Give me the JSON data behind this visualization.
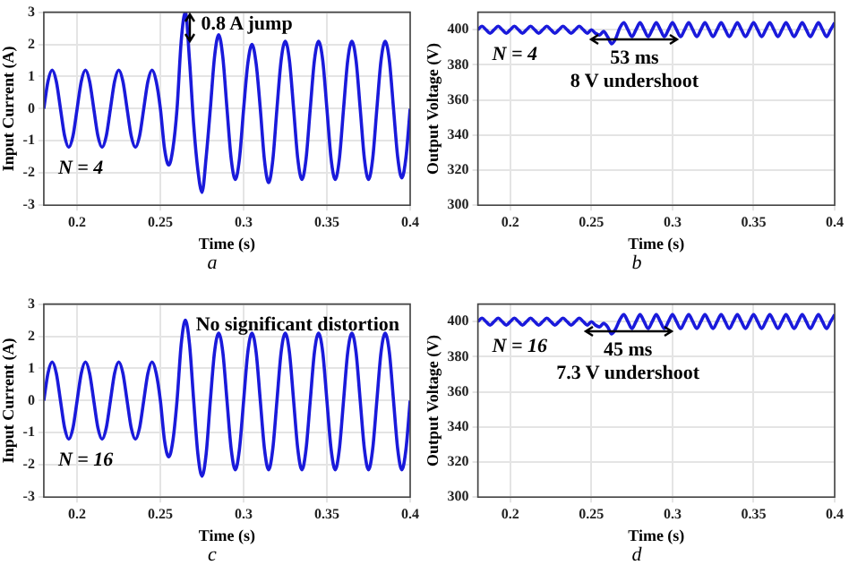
{
  "chart_data": [
    {
      "type": "line",
      "xlabel": "Time (s)",
      "ylabel": "Input Current (A)",
      "annotations": [
        "N = 4",
        {
          "text": "0.8 A jump",
          "x": 0.268,
          "y": 3
        },
        "a"
      ],
      "x": [
        0.18,
        0.1825,
        0.185,
        0.1875,
        0.19,
        0.1925,
        0.195,
        0.1975,
        0.2,
        0.2025,
        0.205,
        0.2075,
        0.21,
        0.2125,
        0.215,
        0.2175,
        0.22,
        0.2225,
        0.225,
        0.2275,
        0.23,
        0.2325,
        0.235,
        0.2375,
        0.24,
        0.2425,
        0.245,
        0.2475,
        0.25,
        0.2525,
        0.255,
        0.2575,
        0.26,
        0.2625,
        0.265,
        0.2675,
        0.27,
        0.2725,
        0.275,
        0.2775,
        0.28,
        0.2825,
        0.285,
        0.2875,
        0.29,
        0.2925,
        0.295,
        0.2975,
        0.3,
        0.3025,
        0.305,
        0.3075,
        0.31,
        0.3125,
        0.315,
        0.3175,
        0.32,
        0.3225,
        0.325,
        0.3275,
        0.33,
        0.3325,
        0.335,
        0.3375,
        0.34,
        0.3425,
        0.345,
        0.3475,
        0.35,
        0.3525,
        0.355,
        0.3575,
        0.36,
        0.3625,
        0.365,
        0.3675,
        0.37,
        0.3725,
        0.375,
        0.3775,
        0.38,
        0.3825,
        0.385,
        0.3875,
        0.39,
        0.3925,
        0.395,
        0.3975,
        0.4
      ],
      "values": [
        0,
        0.85,
        1.2,
        0.85,
        0,
        -0.85,
        -1.2,
        -0.85,
        0,
        0.85,
        1.2,
        0.85,
        0,
        -0.85,
        -1.2,
        -0.85,
        0,
        0.85,
        1.2,
        0.85,
        0,
        -0.85,
        -1.2,
        -0.85,
        0,
        0.85,
        1.2,
        0.85,
        0,
        -1.25,
        -1.75,
        -1.25,
        0,
        2.1,
        3,
        1.5,
        -0.5,
        -1.9,
        -2.6,
        -1.5,
        0,
        1.6,
        2.3,
        1.6,
        0,
        -1.55,
        -2.2,
        -1.55,
        0,
        1.4,
        2,
        1.4,
        0,
        -1.6,
        -2.3,
        -1.6,
        0,
        1.5,
        2.1,
        1.5,
        0,
        -1.55,
        -2.2,
        -1.55,
        0,
        1.5,
        2.1,
        1.5,
        0,
        -1.55,
        -2.2,
        -1.55,
        0,
        1.5,
        2.1,
        1.5,
        0,
        -1.55,
        -2.2,
        -1.55,
        0,
        1.5,
        2.1,
        1.5,
        0,
        -1.5,
        -2.15,
        -1.5,
        0
      ],
      "color": "#1a1adb",
      "xlim": [
        0.18,
        0.4
      ],
      "xticks": [
        0.2,
        0.25,
        0.3,
        0.35,
        0.4
      ],
      "ylim": [
        -3,
        3
      ],
      "yticks": [
        -3,
        -2,
        -1,
        0,
        1,
        2,
        3
      ],
      "grid": true,
      "legend": false,
      "marker": "none"
    },
    {
      "type": "line",
      "xlabel": "Time (s)",
      "ylabel": "Output Voltage (V)",
      "annotations": [
        "N = 4",
        {
          "text": "53 ms",
          "x": 0.2765,
          "y": 395
        },
        "8 V undershoot",
        "b"
      ],
      "x": [
        0.18,
        0.1825,
        0.185,
        0.1875,
        0.19,
        0.1925,
        0.195,
        0.1975,
        0.2,
        0.2025,
        0.205,
        0.2075,
        0.21,
        0.2125,
        0.215,
        0.2175,
        0.22,
        0.2225,
        0.225,
        0.2275,
        0.23,
        0.2325,
        0.235,
        0.2375,
        0.24,
        0.2425,
        0.245,
        0.2475,
        0.25,
        0.2525,
        0.255,
        0.2575,
        0.26,
        0.2625,
        0.265,
        0.2675,
        0.27,
        0.2725,
        0.275,
        0.2775,
        0.28,
        0.2825,
        0.285,
        0.2875,
        0.29,
        0.2925,
        0.295,
        0.2975,
        0.3,
        0.3025,
        0.305,
        0.3075,
        0.31,
        0.3125,
        0.315,
        0.3175,
        0.32,
        0.3225,
        0.325,
        0.3275,
        0.33,
        0.3325,
        0.335,
        0.3375,
        0.34,
        0.3425,
        0.345,
        0.3475,
        0.35,
        0.3525,
        0.355,
        0.3575,
        0.36,
        0.3625,
        0.365,
        0.3675,
        0.37,
        0.3725,
        0.375,
        0.3775,
        0.38,
        0.3825,
        0.385,
        0.3875,
        0.39,
        0.3925,
        0.395,
        0.3975,
        0.4
      ],
      "values": [
        400,
        402,
        400,
        398,
        400,
        402,
        400,
        398,
        400,
        402,
        400,
        398,
        400,
        402,
        400,
        398,
        400,
        402,
        400,
        398,
        400,
        402,
        400,
        398,
        400,
        402,
        400,
        398,
        400,
        398,
        397,
        399,
        396,
        392,
        395,
        401,
        404,
        400,
        396,
        400,
        404,
        400,
        396,
        400,
        404,
        400,
        396,
        400,
        404,
        400,
        396,
        400,
        404,
        400,
        396,
        400,
        404,
        400,
        396,
        400,
        404,
        400,
        396,
        400,
        404,
        400,
        396,
        400,
        404,
        400,
        396,
        400,
        404,
        400,
        396,
        400,
        404,
        400,
        396,
        400,
        404,
        400,
        396,
        400,
        404,
        400,
        396,
        400,
        404
      ],
      "color": "#1a1adb",
      "xlim": [
        0.18,
        0.4
      ],
      "xticks": [
        0.2,
        0.25,
        0.3,
        0.35,
        0.4
      ],
      "ylim": [
        300,
        410
      ],
      "yticks": [
        300,
        320,
        340,
        360,
        380,
        400
      ],
      "grid": true,
      "legend": false,
      "marker": "none"
    },
    {
      "type": "line",
      "xlabel": "Time (s)",
      "ylabel": "Input Current (A)",
      "annotations": [
        "N = 16",
        "No significant distortion",
        "c"
      ],
      "x": [
        0.18,
        0.1825,
        0.185,
        0.1875,
        0.19,
        0.1925,
        0.195,
        0.1975,
        0.2,
        0.2025,
        0.205,
        0.2075,
        0.21,
        0.2125,
        0.215,
        0.2175,
        0.22,
        0.2225,
        0.225,
        0.2275,
        0.23,
        0.2325,
        0.235,
        0.2375,
        0.24,
        0.2425,
        0.245,
        0.2475,
        0.25,
        0.2525,
        0.255,
        0.2575,
        0.26,
        0.2625,
        0.265,
        0.2675,
        0.27,
        0.2725,
        0.275,
        0.2775,
        0.28,
        0.2825,
        0.285,
        0.2875,
        0.29,
        0.2925,
        0.295,
        0.2975,
        0.3,
        0.3025,
        0.305,
        0.3075,
        0.31,
        0.3125,
        0.315,
        0.3175,
        0.32,
        0.3225,
        0.325,
        0.3275,
        0.33,
        0.3325,
        0.335,
        0.3375,
        0.34,
        0.3425,
        0.345,
        0.3475,
        0.35,
        0.3525,
        0.355,
        0.3575,
        0.36,
        0.3625,
        0.365,
        0.3675,
        0.37,
        0.3725,
        0.375,
        0.3775,
        0.38,
        0.3825,
        0.385,
        0.3875,
        0.39,
        0.3925,
        0.395,
        0.3975,
        0.4
      ],
      "values": [
        0,
        0.85,
        1.2,
        0.85,
        0,
        -0.85,
        -1.2,
        -0.85,
        0,
        0.85,
        1.2,
        0.85,
        0,
        -0.85,
        -1.2,
        -0.85,
        0,
        0.85,
        1.2,
        0.85,
        0,
        -0.85,
        -1.2,
        -0.85,
        0,
        0.85,
        1.2,
        0.85,
        0,
        -1.25,
        -1.75,
        -1.25,
        0,
        1.75,
        2.5,
        1.75,
        0,
        -1.65,
        -2.35,
        -1.65,
        0,
        1.5,
        2.1,
        1.5,
        0,
        -1.5,
        -2.15,
        -1.5,
        0,
        1.5,
        2.1,
        1.5,
        0,
        -1.5,
        -2.15,
        -1.5,
        0,
        1.5,
        2.1,
        1.5,
        0,
        -1.5,
        -2.15,
        -1.5,
        0,
        1.5,
        2.1,
        1.5,
        0,
        -1.5,
        -2.15,
        -1.5,
        0,
        1.5,
        2.1,
        1.5,
        0,
        -1.5,
        -2.15,
        -1.5,
        0,
        1.5,
        2.1,
        1.5,
        0,
        -1.5,
        -2.15,
        -1.5,
        0
      ],
      "color": "#1a1adb",
      "xlim": [
        0.18,
        0.4
      ],
      "xticks": [
        0.2,
        0.25,
        0.3,
        0.35,
        0.4
      ],
      "ylim": [
        -3,
        3
      ],
      "yticks": [
        -3,
        -2,
        -1,
        0,
        1,
        2,
        3
      ],
      "grid": true,
      "legend": false,
      "marker": "none"
    },
    {
      "type": "line",
      "xlabel": "Time (s)",
      "ylabel": "Output Voltage (V)",
      "annotations": [
        "N = 16",
        {
          "text": "45 ms",
          "x": 0.2725,
          "y": 395
        },
        "7.3 V undershoot",
        "d"
      ],
      "x": [
        0.18,
        0.1825,
        0.185,
        0.1875,
        0.19,
        0.1925,
        0.195,
        0.1975,
        0.2,
        0.2025,
        0.205,
        0.2075,
        0.21,
        0.2125,
        0.215,
        0.2175,
        0.22,
        0.2225,
        0.225,
        0.2275,
        0.23,
        0.2325,
        0.235,
        0.2375,
        0.24,
        0.2425,
        0.245,
        0.2475,
        0.25,
        0.2525,
        0.255,
        0.2575,
        0.26,
        0.2625,
        0.265,
        0.2675,
        0.27,
        0.2725,
        0.275,
        0.2775,
        0.28,
        0.2825,
        0.285,
        0.2875,
        0.29,
        0.2925,
        0.295,
        0.2975,
        0.3,
        0.3025,
        0.305,
        0.3075,
        0.31,
        0.3125,
        0.315,
        0.3175,
        0.32,
        0.3225,
        0.325,
        0.3275,
        0.33,
        0.3325,
        0.335,
        0.3375,
        0.34,
        0.3425,
        0.345,
        0.3475,
        0.35,
        0.3525,
        0.355,
        0.3575,
        0.36,
        0.3625,
        0.365,
        0.3675,
        0.37,
        0.3725,
        0.375,
        0.3775,
        0.38,
        0.3825,
        0.385,
        0.3875,
        0.39,
        0.3925,
        0.395,
        0.3975,
        0.4
      ],
      "values": [
        400,
        402,
        400,
        398,
        400,
        402,
        400,
        398,
        400,
        402,
        400,
        398,
        400,
        402,
        400,
        398,
        400,
        402,
        400,
        398,
        400,
        402,
        400,
        398,
        400,
        402,
        400,
        398,
        400,
        398,
        397,
        399,
        397,
        393,
        396,
        401,
        404,
        400,
        396,
        400,
        404,
        400,
        396,
        400,
        404,
        400,
        396,
        400,
        404,
        400,
        396,
        400,
        404,
        400,
        396,
        400,
        404,
        400,
        396,
        400,
        404,
        400,
        396,
        400,
        404,
        400,
        396,
        400,
        404,
        400,
        396,
        400,
        404,
        400,
        396,
        400,
        404,
        400,
        396,
        400,
        404,
        400,
        396,
        400,
        404,
        400,
        396,
        400,
        404
      ],
      "color": "#1a1adb",
      "xlim": [
        0.18,
        0.4
      ],
      "xticks": [
        0.2,
        0.25,
        0.3,
        0.35,
        0.4
      ],
      "ylim": [
        300,
        410
      ],
      "yticks": [
        300,
        320,
        340,
        360,
        380,
        400
      ],
      "grid": true,
      "legend": false,
      "marker": "none"
    }
  ]
}
